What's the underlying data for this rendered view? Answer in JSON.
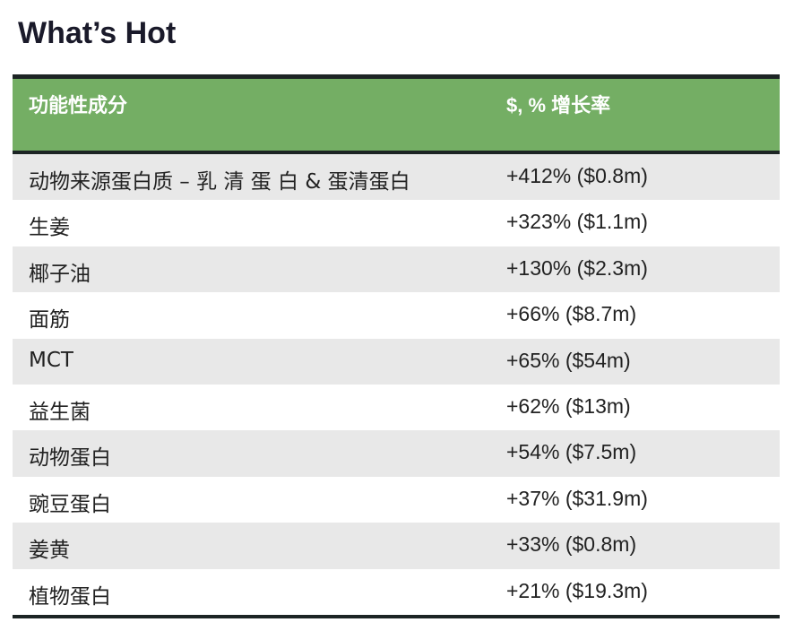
{
  "title": "What’s Hot",
  "table": {
    "headers": [
      "功能性成分",
      "$, % 增长率"
    ],
    "header_color": "#74ae64",
    "rows": [
      [
        "动物来源蛋白质 – 乳 清 蛋 白  & 蛋清蛋白",
        "+412% ($0.8m)"
      ],
      [
        "生姜",
        "+323% ($1.1m)"
      ],
      [
        "椰子油",
        "+130% ($2.3m)"
      ],
      [
        "面筋",
        "+66% ($8.7m)"
      ],
      [
        "MCT",
        "+65% ($54m)"
      ],
      [
        "益生菌",
        "+62% ($13m)"
      ],
      [
        "动物蛋白",
        "+54% ($7.5m)"
      ],
      [
        "豌豆蛋白",
        "+37% ($31.9m)"
      ],
      [
        "姜黄",
        "+33% ($0.8m)"
      ],
      [
        "植物蛋白",
        "+21% ($19.3m)"
      ]
    ]
  }
}
